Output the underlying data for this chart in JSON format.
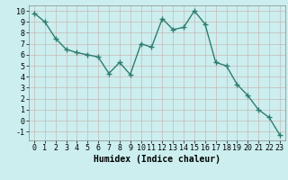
{
  "x": [
    0,
    1,
    2,
    3,
    4,
    5,
    6,
    7,
    8,
    9,
    10,
    11,
    12,
    13,
    14,
    15,
    16,
    17,
    18,
    19,
    20,
    21,
    22,
    23
  ],
  "y": [
    9.8,
    9.0,
    7.5,
    6.5,
    6.2,
    6.0,
    5.8,
    4.3,
    5.3,
    4.2,
    7.0,
    6.7,
    9.3,
    8.3,
    8.5,
    10.0,
    8.8,
    5.3,
    5.0,
    3.3,
    2.3,
    1.0,
    0.3,
    -1.3
  ],
  "line_color": "#2e7d6e",
  "marker": "+",
  "markersize": 4,
  "linewidth": 1.0,
  "bg_color": "#cceeee",
  "plot_bg_color": "#cceeee",
  "grid_color": "#c8b8b8",
  "xlabel": "Humidex (Indice chaleur)",
  "xlabel_fontsize": 7,
  "tick_fontsize": 6,
  "xlim": [
    -0.5,
    23.5
  ],
  "ylim": [
    -1.8,
    10.5
  ],
  "yticks": [
    -1,
    0,
    1,
    2,
    3,
    4,
    5,
    6,
    7,
    8,
    9,
    10
  ],
  "xticks": [
    0,
    1,
    2,
    3,
    4,
    5,
    6,
    7,
    8,
    9,
    10,
    11,
    12,
    13,
    14,
    15,
    16,
    17,
    18,
    19,
    20,
    21,
    22,
    23
  ]
}
